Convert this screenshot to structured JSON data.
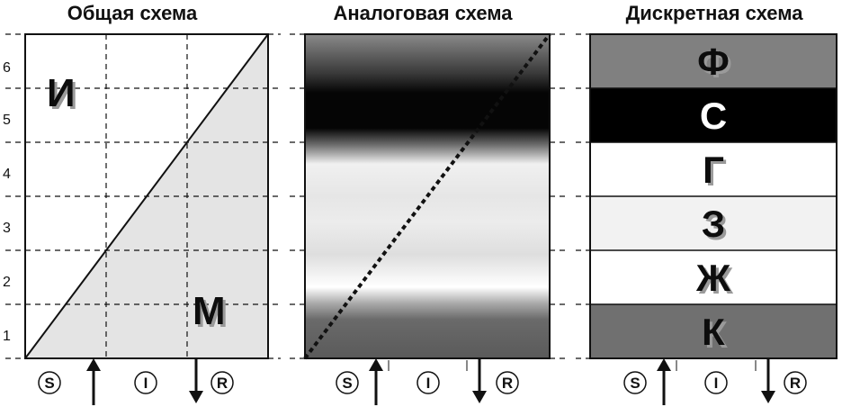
{
  "titles": {
    "general": "Общая схема",
    "analog": "Аналоговая схема",
    "discrete": "Дискретная схема"
  },
  "y_ticks": [
    "1",
    "2",
    "3",
    "4",
    "5",
    "6"
  ],
  "general_labels": {
    "upper": "И",
    "lower": "М"
  },
  "bottom_labels": {
    "s": "S",
    "i": "I",
    "r": "R"
  },
  "discrete_bands": [
    {
      "label": "Ф",
      "fill": "#808080",
      "text_color": "#111111"
    },
    {
      "label": "С",
      "fill": "#000000",
      "text_color": "#ffffff"
    },
    {
      "label": "Г",
      "fill": "#ffffff",
      "text_color": "#111111"
    },
    {
      "label": "З",
      "fill": "#f2f2f2",
      "text_color": "#111111"
    },
    {
      "label": "Ж",
      "fill": "#ffffff",
      "text_color": "#111111"
    },
    {
      "label": "К",
      "fill": "#707070",
      "text_color": "#111111"
    }
  ],
  "colors": {
    "general_fill": "#e4e4e4",
    "frame": "#111111"
  }
}
